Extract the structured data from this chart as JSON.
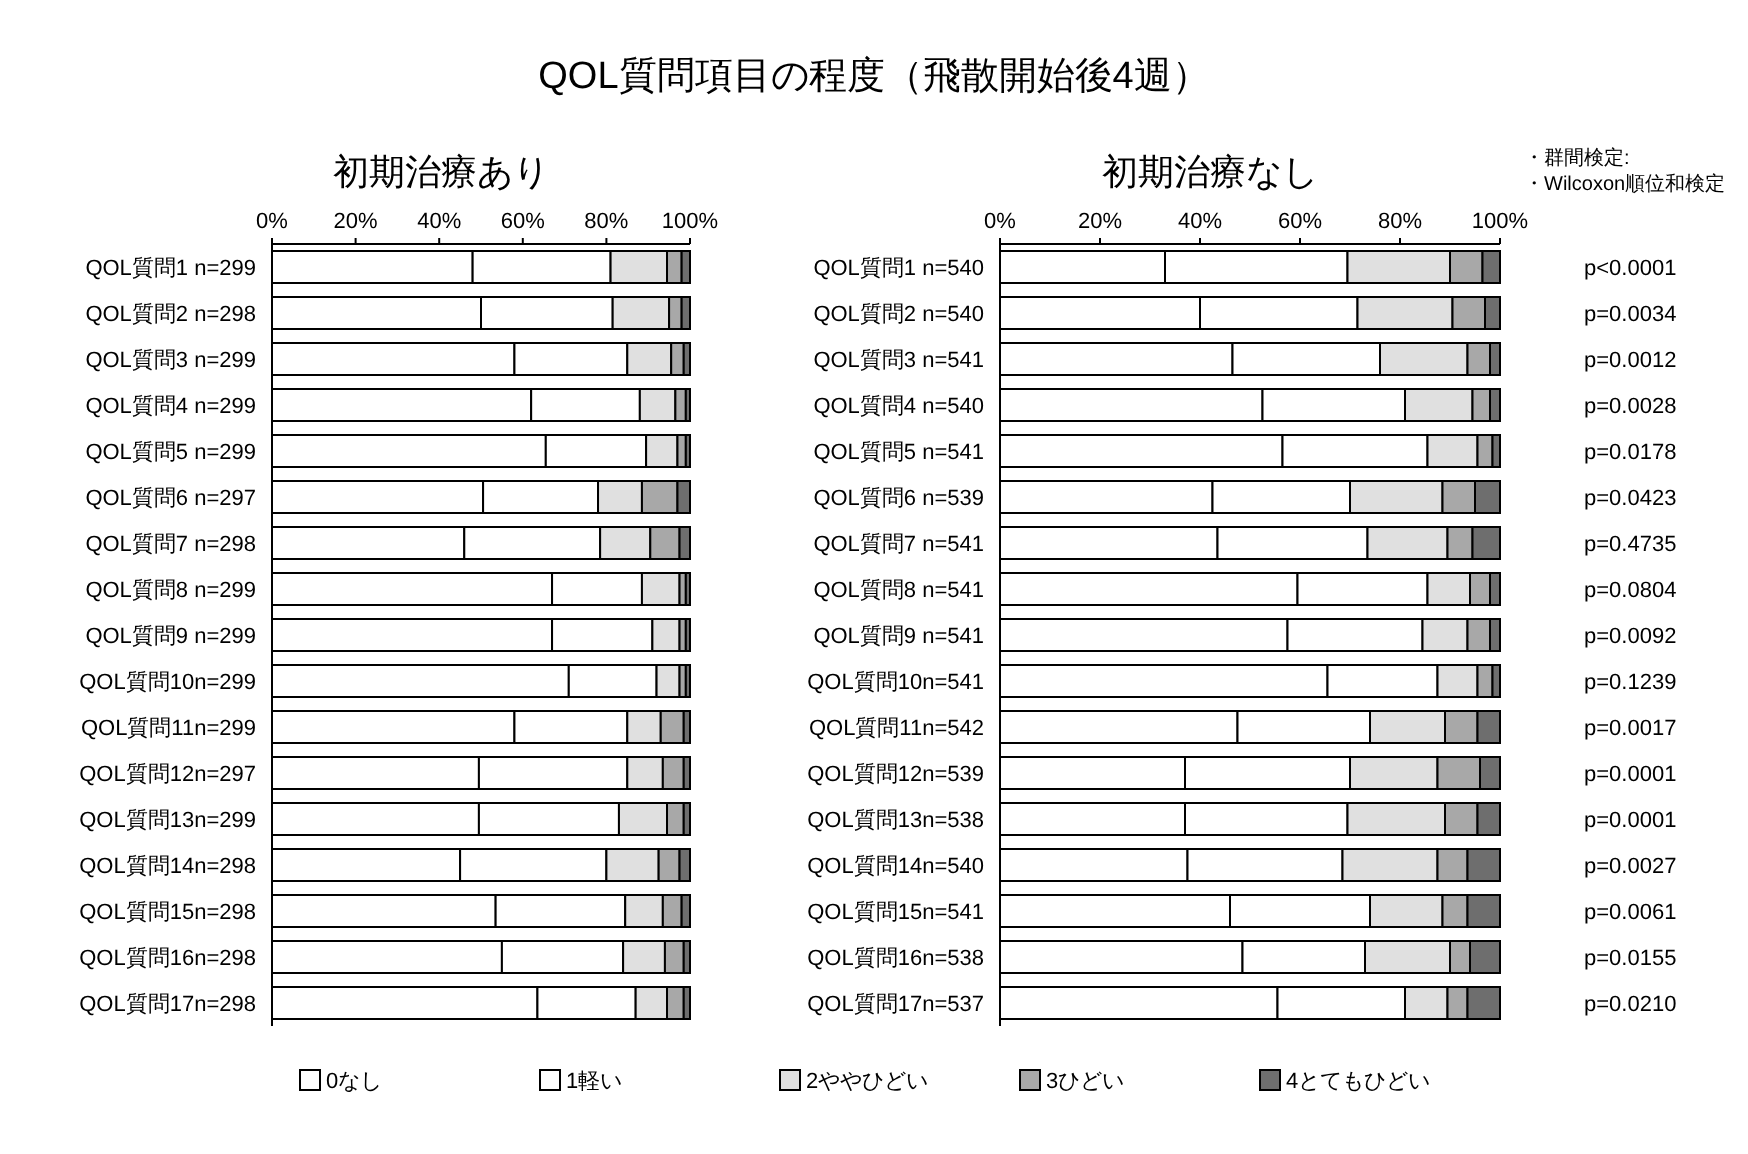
{
  "chart_data": [
    {
      "type": "bar",
      "orientation": "horizontal",
      "stacked": true,
      "title": "QOL質問項目の程度（飛散開始後4週）",
      "subtitle": "初期治療あり",
      "categories": [
        "QOL質問1 n=299",
        "QOL質問2 n=298",
        "QOL質問3 n=299",
        "QOL質問4 n=299",
        "QOL質問5 n=299",
        "QOL質問6 n=297",
        "QOL質問7 n=298",
        "QOL質問8 n=299",
        "QOL質問9 n=299",
        "QOL質問10n=299",
        "QOL質問11n=299",
        "QOL質問12n=297",
        "QOL質問13n=299",
        "QOL質問14n=298",
        "QOL質問15n=298",
        "QOL質問16n=298",
        "QOL質問17n=298"
      ],
      "xlim": [
        0,
        100
      ],
      "xticks": [
        {
          "value": 0,
          "label": "0%"
        },
        {
          "value": 20,
          "label": "20%"
        },
        {
          "value": 40,
          "label": "40%"
        },
        {
          "value": 60,
          "label": "60%"
        },
        {
          "value": 80,
          "label": "80%"
        },
        {
          "value": 100,
          "label": "100%"
        }
      ],
      "legend": "bottom",
      "series": [
        {
          "name": "0なし",
          "color": "#ffffff",
          "values": [
            48,
            50,
            58,
            62,
            65.5,
            50.5,
            46,
            67,
            67,
            71,
            58,
            49.5,
            49.5,
            45,
            53.5,
            55,
            63.5
          ]
        },
        {
          "name": "1軽い",
          "color": "#ffffff",
          "values": [
            33,
            31.5,
            27,
            26,
            24,
            27.5,
            32.5,
            21.5,
            24,
            21,
            27,
            35.5,
            33.5,
            35,
            31,
            29,
            23.5
          ]
        },
        {
          "name": "2ややひどい",
          "color": "#e0e0e0",
          "values": [
            13.5,
            13.5,
            10.5,
            8.5,
            7.5,
            10.5,
            12,
            9,
            6.5,
            5.5,
            8,
            8.5,
            11.5,
            12.5,
            9,
            10,
            7.5
          ]
        },
        {
          "name": "3ひどい",
          "color": "#a8a8a8",
          "values": [
            3.5,
            3,
            3,
            2.5,
            2,
            8.5,
            7,
            1.5,
            1.5,
            1.5,
            5.5,
            5,
            4,
            5,
            4.5,
            4.5,
            4
          ]
        },
        {
          "name": "4とてもひどい",
          "color": "#6e6e6e",
          "values": [
            2,
            2,
            1.5,
            1,
            1,
            3,
            2.5,
            1,
            1,
            1,
            1.5,
            1.5,
            1.5,
            2.5,
            2,
            1.5,
            1.5
          ]
        }
      ]
    },
    {
      "type": "bar",
      "orientation": "horizontal",
      "stacked": true,
      "subtitle": "初期治療なし",
      "categories": [
        "QOL質問1 n=540",
        "QOL質問2 n=540",
        "QOL質問3 n=541",
        "QOL質問4 n=540",
        "QOL質問5 n=541",
        "QOL質問6 n=539",
        "QOL質問7 n=541",
        "QOL質問8 n=541",
        "QOL質問9 n=541",
        "QOL質問10n=541",
        "QOL質問11n=542",
        "QOL質問12n=539",
        "QOL質問13n=538",
        "QOL質問14n=540",
        "QOL質問15n=541",
        "QOL質問16n=538",
        "QOL質問17n=537"
      ],
      "xlim": [
        0,
        100
      ],
      "xticks": [
        {
          "value": 0,
          "label": "0%"
        },
        {
          "value": 20,
          "label": "20%"
        },
        {
          "value": 40,
          "label": "40%"
        },
        {
          "value": 60,
          "label": "60%"
        },
        {
          "value": 80,
          "label": "80%"
        },
        {
          "value": 100,
          "label": "100%"
        }
      ],
      "series": [
        {
          "color": "#ffffff",
          "values": [
            33,
            40,
            46.5,
            52.5,
            56.5,
            42.5,
            43.5,
            59.5,
            57.5,
            65.5,
            47.5,
            37,
            37,
            37.5,
            46,
            48.5,
            55.5
          ]
        },
        {
          "color": "#ffffff",
          "values": [
            36.5,
            31.5,
            29.5,
            28.5,
            29,
            27.5,
            30,
            26,
            27,
            22,
            26.5,
            33,
            32.5,
            31,
            28,
            24.5,
            25.5
          ]
        },
        {
          "color": "#e0e0e0",
          "values": [
            20.5,
            19,
            17.5,
            13.5,
            10,
            18.5,
            16,
            8.5,
            9,
            8,
            15,
            17.5,
            19.5,
            19,
            14.5,
            17,
            8.5
          ]
        },
        {
          "color": "#a8a8a8",
          "values": [
            6.5,
            6.5,
            4.5,
            3.5,
            3,
            6.5,
            5,
            4,
            4.5,
            3,
            6.5,
            8.5,
            6.5,
            6,
            5,
            4,
            4
          ]
        },
        {
          "color": "#6e6e6e",
          "values": [
            3.5,
            3,
            2,
            2,
            1.5,
            5,
            5.5,
            2,
            2,
            1.5,
            4.5,
            4,
            4.5,
            6.5,
            6.5,
            6,
            6.5
          ]
        }
      ],
      "annotations": [
        "・群間検定:",
        "・Wilcoxon順位和検定",
        "p<0.0001",
        "p=0.0034",
        "p=0.0012",
        "p=0.0028",
        "p=0.0178",
        "p=0.0423",
        "p=0.4735",
        "p=0.0804",
        "p=0.0092",
        "p=0.1239",
        "p=0.0017",
        "p=0.0001",
        "p=0.0001",
        "p=0.0027",
        "p=0.0061",
        "p=0.0155",
        "p=0.0210"
      ]
    }
  ]
}
